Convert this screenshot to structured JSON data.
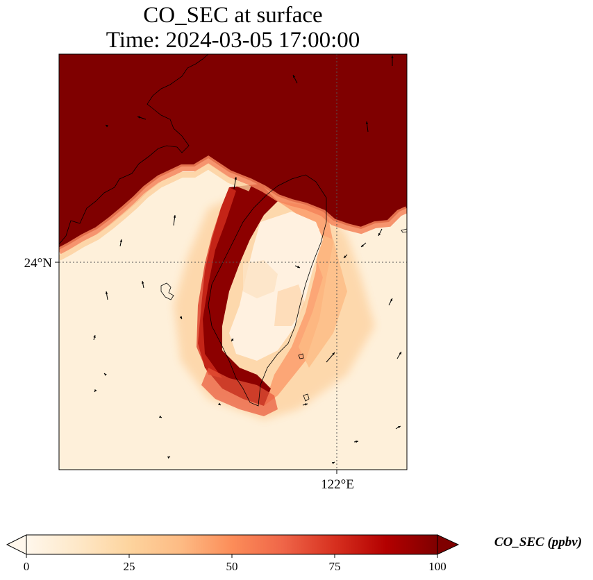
{
  "chart_data": {
    "type": "heatmap",
    "title_line1": "CO_SEC at surface",
    "title_line2": "Time: 2024-03-05 17:00:00",
    "variable": "CO_SEC",
    "units_label": "CO_SEC (ppbv)",
    "lat_ticks": [
      {
        "value": 24,
        "label": "24°N"
      }
    ],
    "lon_ticks": [
      {
        "value": 122,
        "label": "122°E"
      }
    ],
    "extent": {
      "lon_min": 118.0,
      "lon_max": 123.0,
      "lat_min": 21.0,
      "lat_max": 27.0
    },
    "colorbar": {
      "min": 0,
      "max": 100,
      "ticks": [
        0,
        25,
        50,
        75,
        100
      ],
      "colormap": "OrRd",
      "extend": "both",
      "colors": [
        "#fff7ec",
        "#fee8c8",
        "#fdd49e",
        "#fdbb84",
        "#fc8d59",
        "#ef6548",
        "#d7301f",
        "#b30000",
        "#7f0000"
      ]
    },
    "regions": [
      {
        "name": "high_north",
        "value": 100
      },
      {
        "name": "background_south",
        "value": 3
      },
      {
        "name": "western_band",
        "value": 100
      },
      {
        "name": "eastern_band",
        "value": 35
      },
      {
        "name": "inner_core",
        "value": 8
      }
    ],
    "gridlines": "dotted"
  }
}
